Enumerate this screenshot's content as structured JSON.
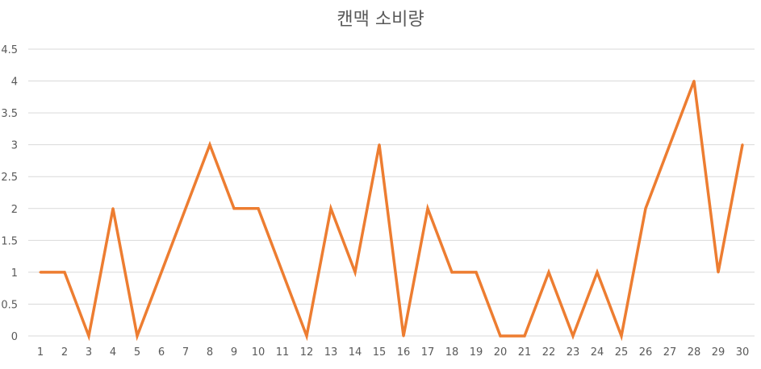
{
  "chart_data": {
    "type": "line",
    "title": "캔맥 소비량",
    "xlabel": "",
    "ylabel": "",
    "categories": [
      "1",
      "2",
      "3",
      "4",
      "5",
      "6",
      "7",
      "8",
      "9",
      "10",
      "11",
      "12",
      "13",
      "14",
      "15",
      "16",
      "17",
      "18",
      "19",
      "20",
      "21",
      "22",
      "23",
      "24",
      "25",
      "26",
      "27",
      "28",
      "29",
      "30"
    ],
    "series": [
      {
        "values": [
          1,
          1,
          0,
          2,
          0,
          1,
          2,
          3,
          2,
          2,
          1,
          0,
          2,
          1,
          3,
          0,
          2,
          1,
          1,
          0,
          0,
          1,
          0,
          1,
          0,
          2,
          3,
          4,
          1,
          3
        ],
        "color": "#ED7D31"
      }
    ],
    "ylim": [
      0,
      4.5
    ],
    "yticks": [
      "0",
      "0.5",
      "1",
      "1.5",
      "2",
      "2.5",
      "3",
      "3.5",
      "4",
      "4.5"
    ],
    "grid": true,
    "legend": "none",
    "gridline_color": "#D9D9D9",
    "text_color": "#595959"
  }
}
